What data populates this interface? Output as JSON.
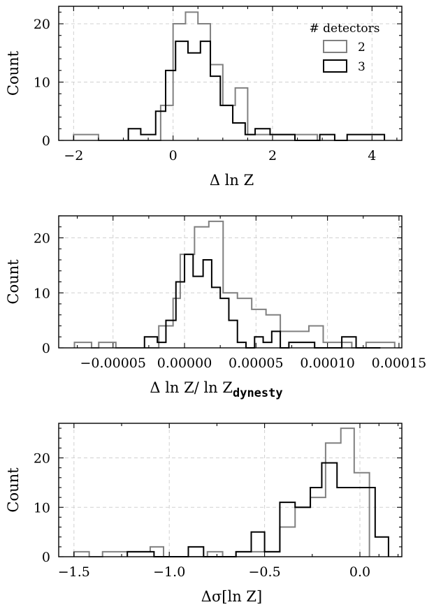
{
  "chart_data": [
    {
      "type": "histogram",
      "xlabel": "Δ ln Z",
      "ylabel": "Count",
      "xlim": [
        -2.3,
        4.6
      ],
      "ylim": [
        0,
        23
      ],
      "xticks": [
        {
          "v": -2,
          "label": "−2"
        },
        {
          "v": 0,
          "label": "0"
        },
        {
          "v": 2,
          "label": "2"
        },
        {
          "v": 4,
          "label": "4"
        }
      ],
      "yticks": [
        {
          "v": 0,
          "label": "0"
        },
        {
          "v": 10,
          "label": "10"
        },
        {
          "v": 20,
          "label": "20"
        }
      ],
      "xminor": [
        -1.5,
        -1,
        -0.5,
        0.5,
        1,
        1.5,
        2.5,
        3,
        3.5,
        4.5
      ],
      "yminor": [
        2,
        4,
        6,
        8,
        12,
        14,
        16,
        18,
        22
      ],
      "legend": {
        "title": "# detectors",
        "position": "top-right"
      },
      "series": [
        {
          "name": "2",
          "color": "#808080",
          "edges": [
            -2.0,
            -1.5,
            -0.25,
            0.0,
            0.25,
            0.5,
            0.75,
            1.0,
            1.25,
            1.5,
            2.6,
            2.9
          ],
          "counts": [
            1,
            0,
            6,
            20,
            22,
            20,
            13,
            6,
            9,
            1,
            1
          ]
        },
        {
          "name": "3",
          "color": "#000000",
          "edges": [
            -0.9,
            -0.65,
            -0.35,
            -0.15,
            0.05,
            0.3,
            0.55,
            0.75,
            0.95,
            1.2,
            1.45,
            1.65,
            1.95,
            2.45,
            2.95,
            3.25,
            3.5,
            3.75,
            4.25
          ],
          "counts": [
            2,
            1,
            5,
            12,
            17,
            15,
            17,
            11,
            6,
            3,
            1,
            2,
            1,
            0,
            1,
            0,
            1,
            1
          ]
        }
      ]
    },
    {
      "type": "histogram",
      "xlabel": "Δ ln Z/ ln Z",
      "xlabel_sub": "dynesty",
      "ylabel": "Count",
      "xlim": [
        -8.8e-05,
        0.000152
      ],
      "ylim": [
        0,
        24
      ],
      "xticks": [
        {
          "v": -5e-05,
          "label": "−0.00005"
        },
        {
          "v": 0,
          "label": "0.00000"
        },
        {
          "v": 5e-05,
          "label": "0.00005"
        },
        {
          "v": 0.0001,
          "label": "0.00010"
        },
        {
          "v": 0.00015,
          "label": "0.00015"
        }
      ],
      "yticks": [
        {
          "v": 0,
          "label": "0"
        },
        {
          "v": 10,
          "label": "10"
        },
        {
          "v": 20,
          "label": "20"
        }
      ],
      "xminor": [
        -7.5e-05,
        -2.5e-05,
        2.5e-05,
        7.5e-05,
        0.000125
      ],
      "yminor": [
        2,
        4,
        6,
        8,
        12,
        14,
        16,
        18,
        22,
        24
      ],
      "series": [
        {
          "name": "2",
          "color": "#808080",
          "edges": [
            -7.7e-05,
            -6.5e-05,
            -6e-05,
            -4.8e-05,
            -1.8e-05,
            -8e-06,
            -3e-06,
            7e-06,
            1.7e-05,
            2.7e-05,
            3.7e-05,
            4.7e-05,
            5.7e-05,
            6.7e-05,
            7.7e-05,
            8.7e-05,
            9.7e-05,
            0.000107,
            0.000117,
            0.000127,
            0.000137,
            0.000147
          ],
          "counts": [
            1,
            0,
            1,
            0,
            4,
            9,
            17,
            22,
            23,
            10,
            9,
            7,
            6,
            3,
            3,
            4,
            1,
            1,
            0,
            1,
            1
          ]
        },
        {
          "name": "3",
          "color": "#000000",
          "edges": [
            -2.8e-05,
            -1.9e-05,
            -1.3e-05,
            -6e-06,
            0.0,
            6e-06,
            1.3e-05,
            1.9e-05,
            2.5e-05,
            3.1e-05,
            3.7e-05,
            4.3e-05,
            4.9e-05,
            5.5e-05,
            6.1e-05,
            6.7e-05,
            7.3e-05,
            7.9e-05,
            8.5e-05,
            9.1e-05,
            0.0001,
            0.00011,
            0.00012,
            0.00013,
            0.000137
          ],
          "counts": [
            2,
            1,
            5,
            12,
            17,
            13,
            16,
            11,
            9,
            5,
            1,
            0,
            2,
            1,
            3,
            0,
            1,
            1,
            1,
            0,
            0,
            2,
            0,
            0
          ]
        }
      ]
    },
    {
      "type": "histogram",
      "xlabel": "Δσ[ln Z]",
      "ylabel": "Count",
      "xlim": [
        -1.58,
        0.22
      ],
      "ylim": [
        0,
        27
      ],
      "xticks": [
        {
          "v": -1.5,
          "label": "−1.5"
        },
        {
          "v": -1.0,
          "label": "−1.0"
        },
        {
          "v": -0.5,
          "label": "−0.5"
        },
        {
          "v": 0.0,
          "label": "0.0"
        }
      ],
      "yticks": [
        {
          "v": 0,
          "label": "0"
        },
        {
          "v": 10,
          "label": "10"
        },
        {
          "v": 20,
          "label": "20"
        }
      ],
      "xminor": [
        -1.25,
        -0.75,
        -0.25,
        0.1,
        0.2
      ],
      "yminor": [
        2,
        4,
        6,
        8,
        12,
        14,
        16,
        18,
        22,
        24,
        26
      ],
      "series": [
        {
          "name": "2",
          "color": "#808080",
          "edges": [
            -1.5,
            -1.42,
            -1.35,
            -1.1,
            -1.03,
            -0.8,
            -0.72,
            -0.65,
            -0.57,
            -0.42,
            -0.34,
            -0.26,
            -0.18,
            -0.1,
            -0.03,
            0.05
          ],
          "counts": [
            1,
            0,
            1,
            2,
            0,
            1,
            0,
            1,
            1,
            6,
            10,
            12,
            23,
            26,
            17
          ]
        },
        {
          "name": "3",
          "color": "#000000",
          "edges": [
            -1.22,
            -1.08,
            -0.9,
            -0.82,
            -0.73,
            -0.65,
            -0.57,
            -0.5,
            -0.42,
            -0.34,
            -0.26,
            -0.2,
            -0.12,
            -0.05,
            0.05,
            0.08,
            0.15
          ],
          "counts": [
            1,
            0,
            2,
            0,
            0,
            1,
            5,
            1,
            11,
            10,
            14,
            19,
            14,
            14,
            14,
            4
          ]
        }
      ]
    }
  ]
}
